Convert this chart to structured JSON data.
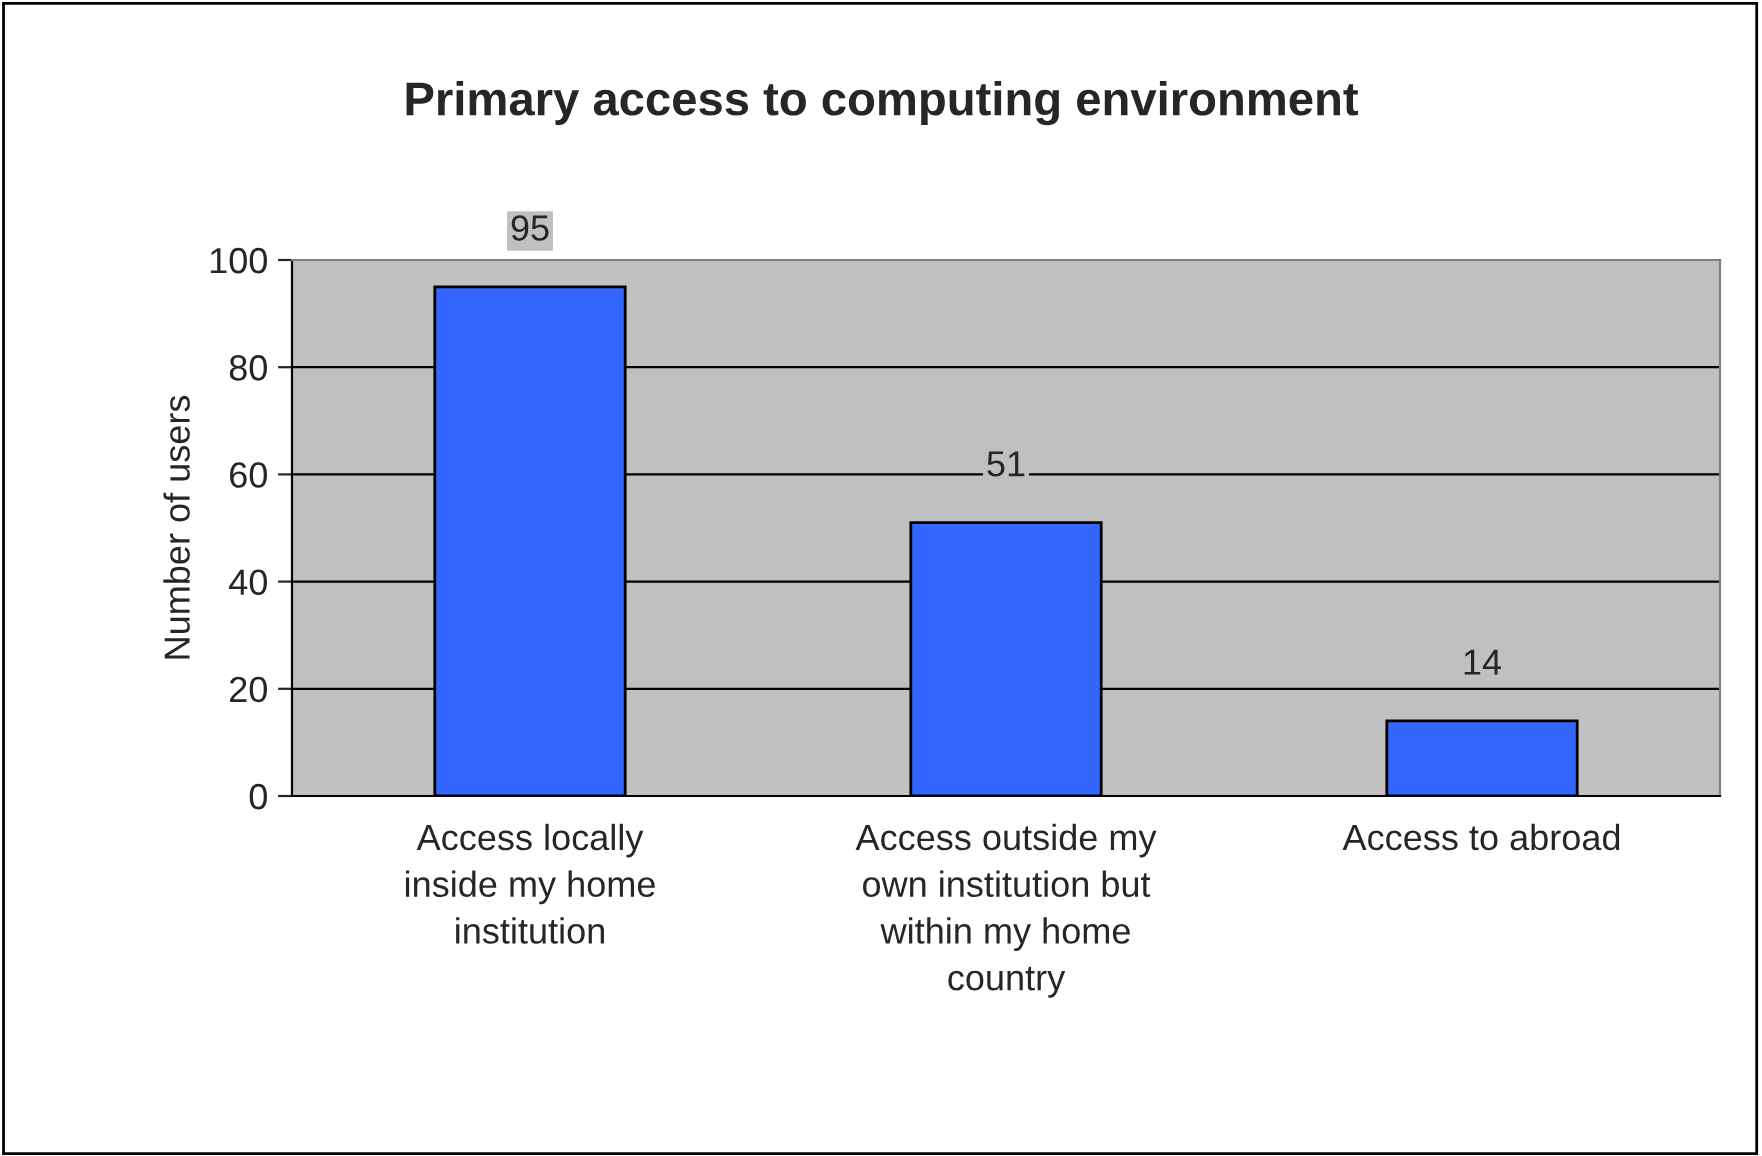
{
  "chart_data": {
    "type": "bar",
    "title": "Primary access to computing environment",
    "ylabel": "Number of users",
    "categories": [
      "Access locally\ninside my home\ninstitution",
      "Access outside my\nown institution but\nwithin my home\ncountry",
      "Access to abroad"
    ],
    "values": [
      95,
      51,
      14
    ],
    "color": "#3366ff",
    "ylim": [
      0,
      100
    ],
    "yticks": [
      0,
      20,
      40,
      60,
      80,
      100
    ],
    "grid": "y",
    "data_labels": true,
    "legend": false
  }
}
